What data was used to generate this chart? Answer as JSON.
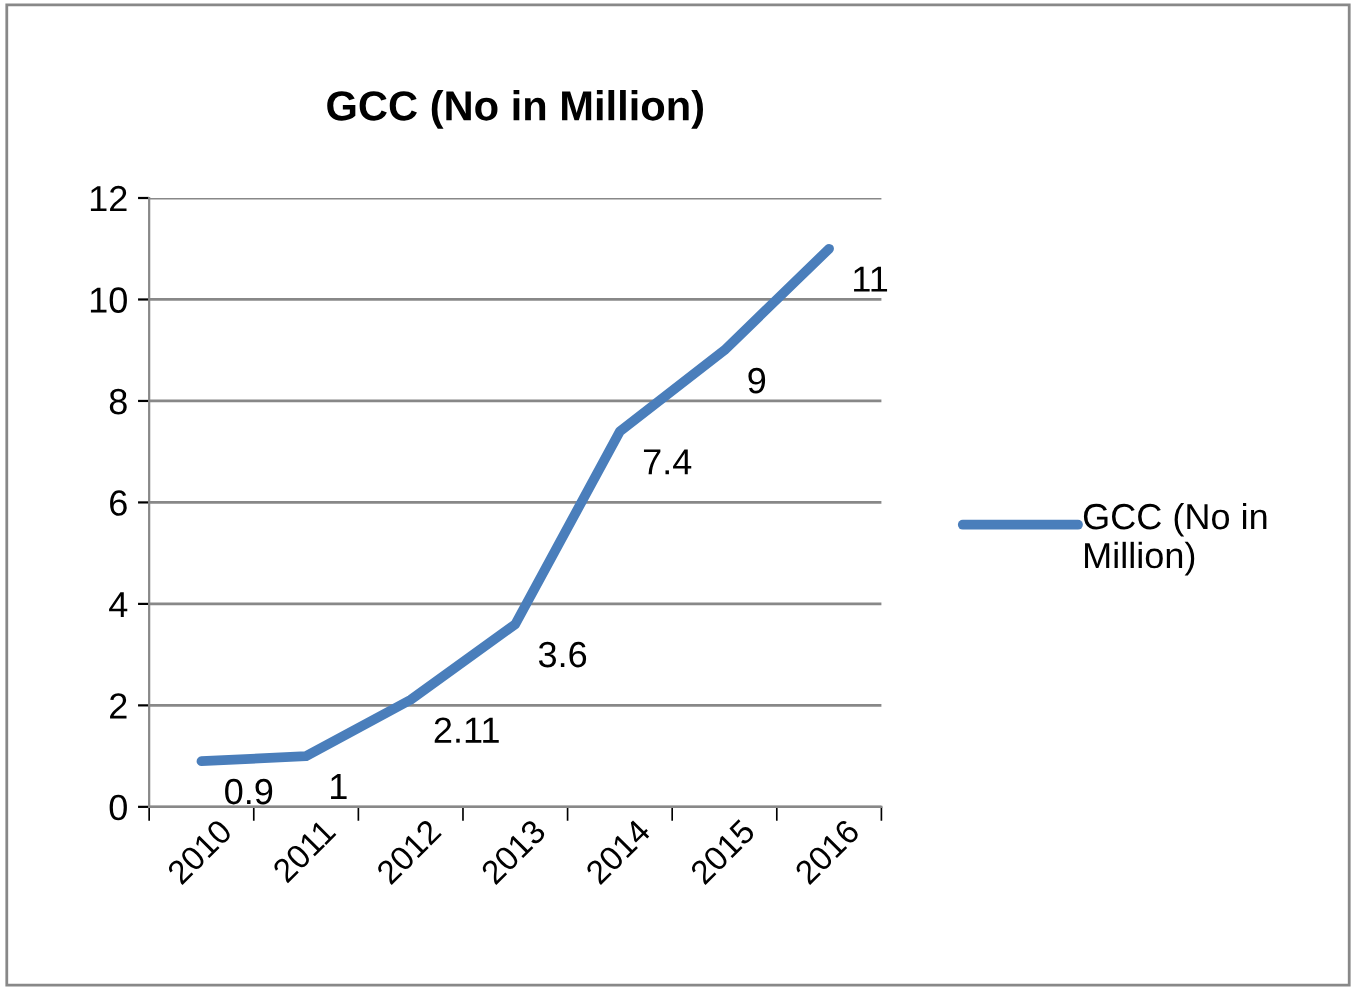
{
  "chart_data": {
    "type": "line",
    "title": "GCC (No in Million)",
    "categories": [
      "2010",
      "2011",
      "2012",
      "2013",
      "2014",
      "2015",
      "2016"
    ],
    "series": [
      {
        "name": "GCC (No in Million)",
        "color": "#4a7ebb",
        "values": [
          0.9,
          1,
          2.11,
          3.6,
          7.4,
          9,
          11
        ]
      }
    ],
    "ylim": [
      0,
      12
    ],
    "yticks": [
      0,
      2,
      4,
      6,
      8,
      10,
      12
    ],
    "grid": "y",
    "legend": "right",
    "data_labels": true,
    "marker": "none",
    "line_style": "solid"
  }
}
